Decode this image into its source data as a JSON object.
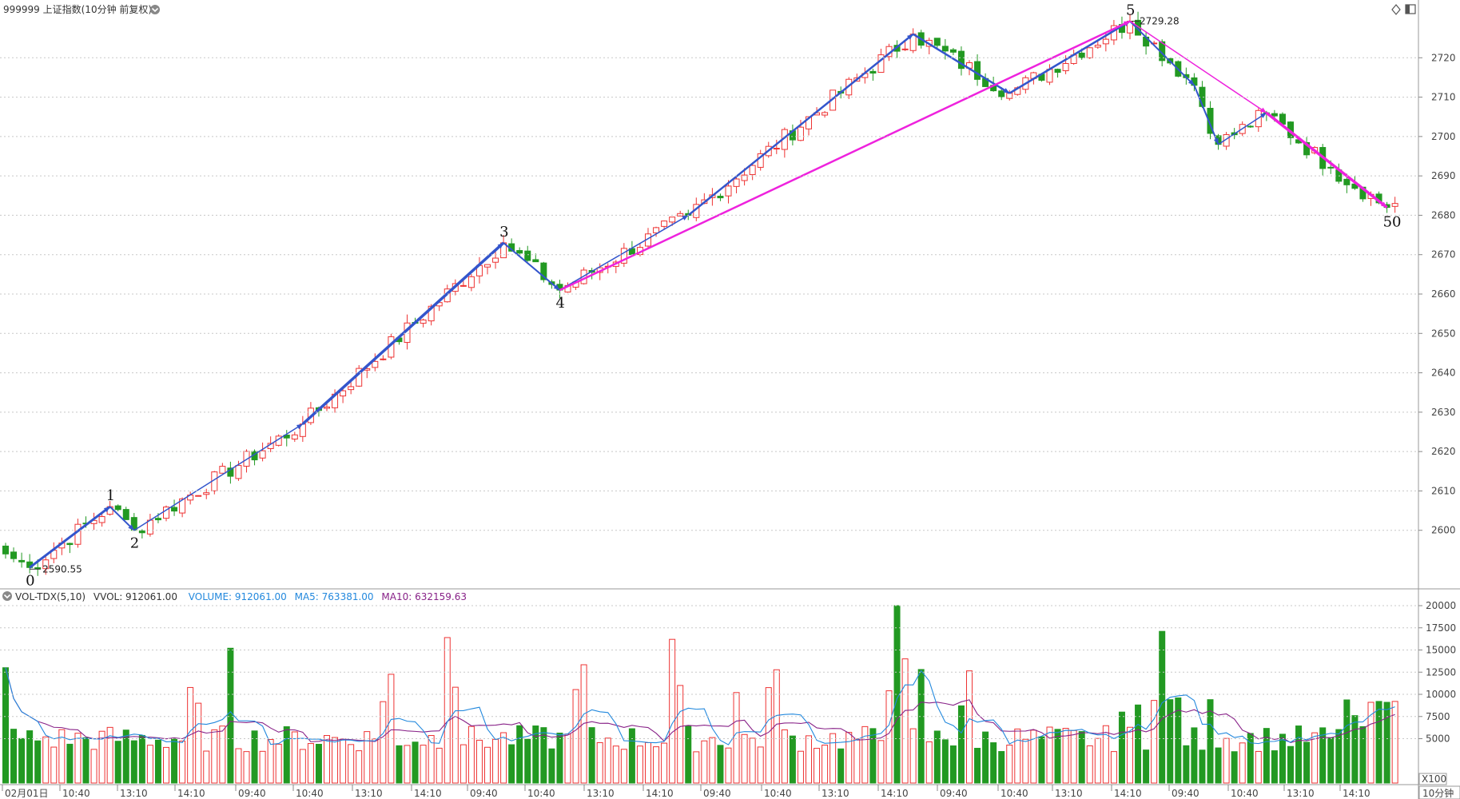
{
  "header": {
    "title": "999999 上证指数(10分钟 前复权)",
    "icons": [
      "chevron-down-icon",
      "diamond-icon",
      "panel-toggle-icon"
    ]
  },
  "volume_header": {
    "name": "VOL-TDX(5,10)",
    "vvol": "VVOL: 912061.00",
    "volume": "VOLUME: 912061.00",
    "ma5": "MA5: 763381.00",
    "ma10": "MA10: 632159.63"
  },
  "colors": {
    "up": "#ee3333",
    "down": "#229922",
    "wave_primary": "#3355cc",
    "wave_secondary": "#ee22dd",
    "ma5": "#2288dd",
    "ma10": "#882288",
    "grid": "#c8c8c8"
  },
  "annotations": {
    "low_value": "2590.55",
    "high_value": "2729.28",
    "wave_labels": [
      "0",
      "1",
      "2",
      "3",
      "4",
      "5",
      "50"
    ]
  },
  "chart_data": [
    {
      "type": "candlestick",
      "ylim": [
        2590,
        2730
      ],
      "ytick_labels": [
        "2600",
        "2610",
        "2620",
        "2630",
        "2640",
        "2650",
        "2660",
        "2670",
        "2680",
        "2690",
        "2700",
        "2710",
        "2720"
      ],
      "xtick_labels": [
        "02月01日",
        "10:40",
        "13:10",
        "14:10",
        "09:40",
        "10:40",
        "13:10",
        "14:10",
        "09:40",
        "10:40",
        "13:10",
        "14:10",
        "09:40",
        "10:40",
        "13:10",
        "14:10",
        "09:40",
        "10:40",
        "13:10",
        "14:10",
        "09:40",
        "10:40",
        "13:10",
        "14:10"
      ],
      "period_label": "10分钟",
      "wave_points": [
        {
          "label": "0",
          "value": 2590.55
        },
        {
          "label": "1",
          "value": 2606
        },
        {
          "label": "2",
          "value": 2600
        },
        {
          "label": "3",
          "value": 2673
        },
        {
          "label": "4",
          "value": 2661
        },
        {
          "label": "5",
          "value": 2729.28
        },
        {
          "label": "50",
          "value": 2682
        }
      ]
    },
    {
      "type": "bar",
      "series_names": [
        "VOLUME",
        "MA5",
        "MA10"
      ],
      "ylim": [
        0,
        20000
      ],
      "ytick_labels": [
        "5000",
        "7500",
        "10000",
        "12500",
        "15000",
        "17500",
        "20000"
      ],
      "unit_label": "X100"
    }
  ]
}
